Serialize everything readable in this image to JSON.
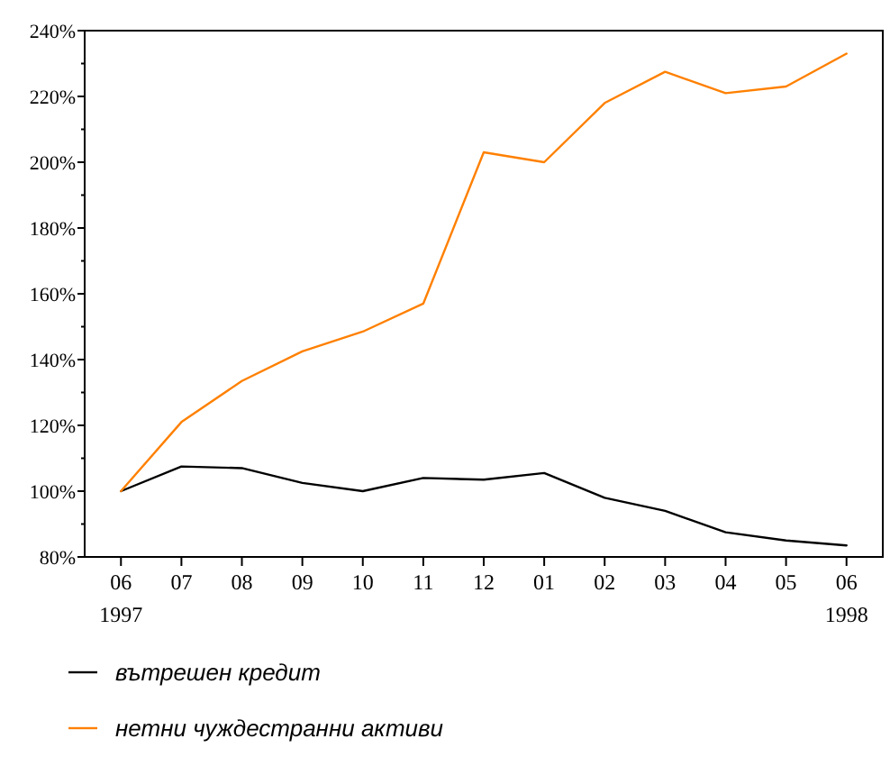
{
  "chart_data": {
    "type": "line",
    "categories": [
      "06\n1997",
      "07",
      "08",
      "09",
      "10",
      "11",
      "12",
      "01",
      "02",
      "03",
      "04",
      "05",
      "06\n1998"
    ],
    "series": [
      {
        "name": "вътрешен кредит",
        "color": "#000000",
        "values": [
          100,
          107.5,
          107,
          102.5,
          100,
          104,
          103.5,
          105.5,
          98,
          94,
          87.5,
          85,
          83.5
        ]
      },
      {
        "name": "нетни чуждестранни активи",
        "color": "#ff8000",
        "values": [
          100,
          121,
          133.5,
          142.5,
          148.5,
          157,
          203,
          200,
          218,
          227.5,
          221,
          223,
          233
        ]
      }
    ],
    "ylim": [
      80,
      240
    ],
    "yticks": [
      {
        "value": 80,
        "label": "80%"
      },
      {
        "value": 100,
        "label": "100%"
      },
      {
        "value": 120,
        "label": "120%"
      },
      {
        "value": 140,
        "label": "140%"
      },
      {
        "value": 160,
        "label": "160%"
      },
      {
        "value": 180,
        "label": "180%"
      },
      {
        "value": 200,
        "label": "200%"
      },
      {
        "value": 220,
        "label": "220%"
      },
      {
        "value": 240,
        "label": "240%"
      }
    ],
    "grid": false,
    "legend": "bottom",
    "marker": "none",
    "line_style": "solid"
  }
}
